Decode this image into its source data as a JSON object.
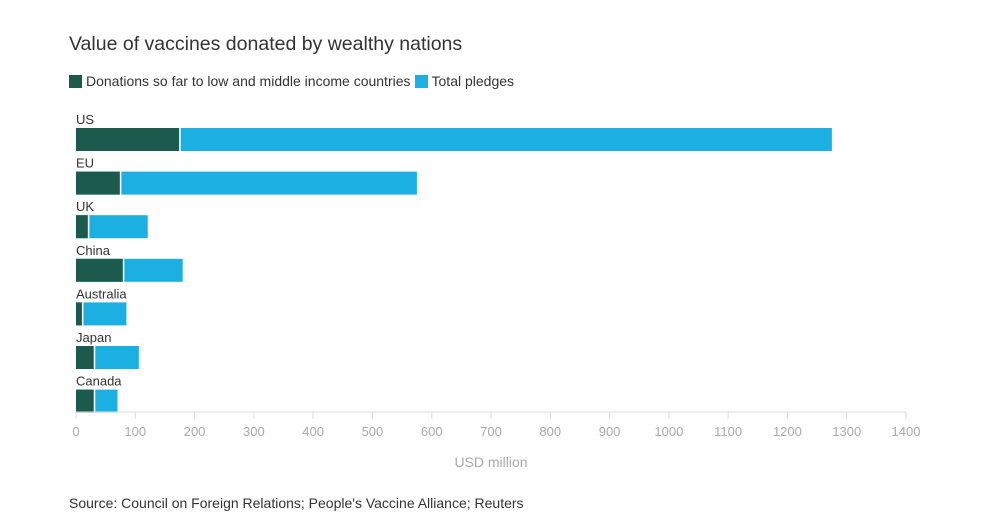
{
  "chart_data": {
    "type": "bar",
    "orientation": "horizontal",
    "title": "Value of vaccines donated by wealthy nations",
    "xlabel": "USD million",
    "ylabel": "",
    "xlim": [
      0,
      1400
    ],
    "xticks": [
      0,
      100,
      200,
      300,
      400,
      500,
      600,
      700,
      800,
      900,
      1000,
      1100,
      1200,
      1300,
      1400
    ],
    "categories": [
      "US",
      "EU",
      "UK",
      "China",
      "Australia",
      "Japan",
      "Canada"
    ],
    "series": [
      {
        "name": "Donations so far to low and middle income countries",
        "color": "#1b5a4c",
        "values": [
          174,
          74,
          20,
          79,
          10,
          30,
          30
        ]
      },
      {
        "name": "Total pledges",
        "color": "#1cb0e2",
        "values": [
          1275,
          575,
          121,
          180,
          85,
          106,
          70
        ]
      }
    ],
    "grid": false,
    "legend_position": "top-left",
    "source": "Source: Council on Foreign Relations; People's Vaccine Alliance; Reuters"
  }
}
